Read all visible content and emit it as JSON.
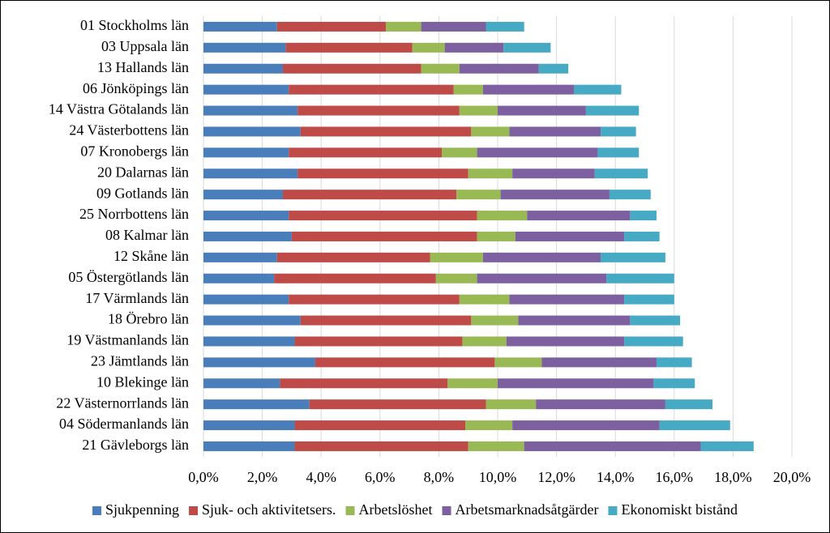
{
  "chart_data": {
    "type": "bar",
    "orientation": "horizontal",
    "stacked": true,
    "grid": true,
    "categories": [
      "01 Stockholms län",
      "03 Uppsala län",
      "13 Hallands län",
      "06 Jönköpings län",
      "14 Västra Götalands län",
      "24 Västerbottens län",
      "07 Kronobergs län",
      "20 Dalarnas län",
      "09 Gotlands län",
      "25 Norrbottens län",
      "08 Kalmar län",
      "12 Skåne län",
      "05 Östergötlands län",
      "17 Värmlands län",
      "18 Örebro län",
      "19 Västmanlands län",
      "23 Jämtlands län",
      "10 Blekinge län",
      "22 Västernorrlands län",
      "04 Södermanlands län",
      "21 Gävleborgs län"
    ],
    "series": [
      {
        "name": "Sjukpenning",
        "color": "#4a7ebb",
        "values": [
          2.5,
          2.8,
          2.7,
          2.9,
          3.2,
          3.3,
          2.9,
          3.2,
          2.7,
          2.9,
          3.0,
          2.5,
          2.4,
          2.9,
          3.3,
          3.1,
          3.8,
          2.6,
          3.6,
          3.1,
          3.1
        ]
      },
      {
        "name": "Sjuk- och aktivitetsers.",
        "color": "#be4b48",
        "values": [
          3.7,
          4.3,
          4.7,
          5.6,
          5.5,
          5.8,
          5.2,
          5.8,
          5.9,
          6.4,
          6.3,
          5.2,
          5.5,
          5.8,
          5.8,
          5.7,
          6.1,
          5.7,
          6.0,
          5.8,
          5.9
        ]
      },
      {
        "name": "Arbetslöshet",
        "color": "#98b954",
        "values": [
          1.2,
          1.1,
          1.3,
          1.0,
          1.3,
          1.3,
          1.2,
          1.5,
          1.5,
          1.7,
          1.3,
          1.8,
          1.4,
          1.7,
          1.6,
          1.5,
          1.6,
          1.7,
          1.7,
          1.6,
          1.9
        ]
      },
      {
        "name": "Arbetsmarknadsåtgärder",
        "color": "#7d60a0",
        "values": [
          2.2,
          2.0,
          2.7,
          3.1,
          3.0,
          3.1,
          4.1,
          2.8,
          3.7,
          3.5,
          3.7,
          4.0,
          4.4,
          3.9,
          3.8,
          4.0,
          3.9,
          5.3,
          4.4,
          5.0,
          6.0
        ]
      },
      {
        "name": "Ekonomiskt bistånd",
        "color": "#46aac5",
        "values": [
          1.3,
          1.6,
          1.0,
          1.6,
          1.8,
          1.2,
          1.4,
          1.8,
          1.4,
          0.9,
          1.2,
          2.2,
          2.3,
          1.7,
          1.7,
          2.0,
          1.2,
          1.4,
          1.6,
          2.4,
          1.8
        ]
      }
    ],
    "xlim": [
      0,
      20
    ],
    "xticks": [
      {
        "value": 0,
        "label": "0,0%"
      },
      {
        "value": 2,
        "label": "2,0%"
      },
      {
        "value": 4,
        "label": "4,0%"
      },
      {
        "value": 6,
        "label": "6,0%"
      },
      {
        "value": 8,
        "label": "8,0%"
      },
      {
        "value": 10,
        "label": "10,0%"
      },
      {
        "value": 12,
        "label": "12,0%"
      },
      {
        "value": 14,
        "label": "14,0%"
      },
      {
        "value": 16,
        "label": "16,0%"
      },
      {
        "value": 18,
        "label": "18,0%"
      },
      {
        "value": 20,
        "label": "20,0%"
      }
    ]
  }
}
